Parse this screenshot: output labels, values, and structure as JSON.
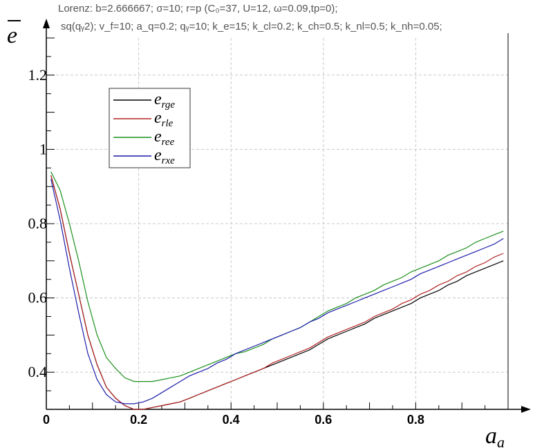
{
  "header": {
    "line1": "Lorenz: b=2.666667; σ=10; r=p (C₀=37, U=12, ω=0.09,tp=0);",
    "line2": "sq(qᵧ2); v_f=10; a_q=0.2; qᵧ=10; k_e=15; k_cl=0.2; k_ch=0.5; k_nl=0.5; k_nh=0.05;"
  },
  "chart_data": {
    "type": "line",
    "title": "",
    "xlabel": "a_a",
    "ylabel": "e",
    "xlim": [
      0,
      1.0
    ],
    "ylim": [
      0.3,
      1.3
    ],
    "xticks": [
      "0",
      "0.2",
      "0.4",
      "0.6",
      "0.8"
    ],
    "yticks": [
      "0.4",
      "0.6",
      "0.8",
      "1",
      "1.2"
    ],
    "grid": true,
    "legend_position": "top-left",
    "series": [
      {
        "name": "e_rge",
        "color": "#000000",
        "x": [
          0.01,
          0.03,
          0.05,
          0.07,
          0.09,
          0.11,
          0.13,
          0.15,
          0.17,
          0.19,
          0.21,
          0.23,
          0.25,
          0.27,
          0.29,
          0.31,
          0.33,
          0.35,
          0.37,
          0.39,
          0.41,
          0.43,
          0.45,
          0.47,
          0.49,
          0.51,
          0.53,
          0.55,
          0.57,
          0.59,
          0.61,
          0.63,
          0.65,
          0.67,
          0.69,
          0.71,
          0.73,
          0.75,
          0.77,
          0.79,
          0.81,
          0.83,
          0.85,
          0.87,
          0.89,
          0.91,
          0.93,
          0.95,
          0.97,
          0.99
        ],
        "y": [
          0.93,
          0.84,
          0.72,
          0.61,
          0.5,
          0.42,
          0.36,
          0.33,
          0.31,
          0.3,
          0.3,
          0.305,
          0.31,
          0.315,
          0.32,
          0.33,
          0.34,
          0.35,
          0.36,
          0.37,
          0.38,
          0.39,
          0.4,
          0.41,
          0.42,
          0.43,
          0.44,
          0.45,
          0.46,
          0.475,
          0.49,
          0.5,
          0.51,
          0.52,
          0.53,
          0.545,
          0.555,
          0.565,
          0.575,
          0.585,
          0.6,
          0.61,
          0.62,
          0.635,
          0.645,
          0.66,
          0.67,
          0.68,
          0.69,
          0.7
        ]
      },
      {
        "name": "e_rle",
        "color": "#b22222",
        "x": [
          0.01,
          0.03,
          0.05,
          0.07,
          0.09,
          0.11,
          0.13,
          0.15,
          0.17,
          0.19,
          0.21,
          0.23,
          0.25,
          0.27,
          0.29,
          0.31,
          0.33,
          0.35,
          0.37,
          0.39,
          0.41,
          0.43,
          0.45,
          0.47,
          0.49,
          0.51,
          0.53,
          0.55,
          0.57,
          0.59,
          0.61,
          0.63,
          0.65,
          0.67,
          0.69,
          0.71,
          0.73,
          0.75,
          0.77,
          0.79,
          0.81,
          0.83,
          0.85,
          0.87,
          0.89,
          0.91,
          0.93,
          0.95,
          0.97,
          0.99
        ],
        "y": [
          0.93,
          0.84,
          0.72,
          0.61,
          0.5,
          0.42,
          0.36,
          0.33,
          0.31,
          0.3,
          0.3,
          0.305,
          0.31,
          0.315,
          0.32,
          0.33,
          0.34,
          0.35,
          0.36,
          0.37,
          0.38,
          0.39,
          0.4,
          0.41,
          0.425,
          0.435,
          0.445,
          0.455,
          0.465,
          0.48,
          0.495,
          0.505,
          0.515,
          0.525,
          0.535,
          0.55,
          0.56,
          0.57,
          0.585,
          0.595,
          0.61,
          0.62,
          0.635,
          0.645,
          0.66,
          0.67,
          0.685,
          0.695,
          0.71,
          0.72
        ]
      },
      {
        "name": "e_ree",
        "color": "#1a8f1a",
        "x": [
          0.01,
          0.03,
          0.05,
          0.07,
          0.09,
          0.11,
          0.13,
          0.15,
          0.17,
          0.19,
          0.21,
          0.23,
          0.25,
          0.27,
          0.29,
          0.31,
          0.33,
          0.35,
          0.37,
          0.39,
          0.41,
          0.43,
          0.45,
          0.47,
          0.49,
          0.51,
          0.53,
          0.55,
          0.57,
          0.59,
          0.61,
          0.63,
          0.65,
          0.67,
          0.69,
          0.71,
          0.73,
          0.75,
          0.77,
          0.79,
          0.81,
          0.83,
          0.85,
          0.87,
          0.89,
          0.91,
          0.93,
          0.95,
          0.97,
          0.99
        ],
        "y": [
          0.94,
          0.89,
          0.8,
          0.7,
          0.59,
          0.5,
          0.44,
          0.41,
          0.385,
          0.375,
          0.375,
          0.375,
          0.38,
          0.385,
          0.39,
          0.4,
          0.41,
          0.42,
          0.43,
          0.44,
          0.45,
          0.455,
          0.465,
          0.475,
          0.49,
          0.5,
          0.51,
          0.52,
          0.535,
          0.55,
          0.565,
          0.575,
          0.585,
          0.6,
          0.61,
          0.62,
          0.635,
          0.645,
          0.655,
          0.67,
          0.68,
          0.69,
          0.7,
          0.715,
          0.725,
          0.735,
          0.75,
          0.76,
          0.77,
          0.78
        ]
      },
      {
        "name": "e_rxe",
        "color": "#1c1caa",
        "x": [
          0.01,
          0.03,
          0.05,
          0.07,
          0.09,
          0.11,
          0.13,
          0.15,
          0.17,
          0.19,
          0.21,
          0.23,
          0.25,
          0.27,
          0.29,
          0.31,
          0.33,
          0.35,
          0.37,
          0.39,
          0.41,
          0.43,
          0.45,
          0.47,
          0.49,
          0.51,
          0.53,
          0.55,
          0.57,
          0.59,
          0.61,
          0.63,
          0.65,
          0.67,
          0.69,
          0.71,
          0.73,
          0.75,
          0.77,
          0.79,
          0.81,
          0.83,
          0.85,
          0.87,
          0.89,
          0.91,
          0.93,
          0.95,
          0.97,
          0.99
        ],
        "y": [
          0.92,
          0.81,
          0.68,
          0.56,
          0.45,
          0.38,
          0.34,
          0.32,
          0.315,
          0.315,
          0.32,
          0.33,
          0.345,
          0.36,
          0.375,
          0.39,
          0.4,
          0.41,
          0.425,
          0.435,
          0.45,
          0.46,
          0.47,
          0.48,
          0.49,
          0.5,
          0.51,
          0.52,
          0.535,
          0.545,
          0.56,
          0.57,
          0.58,
          0.59,
          0.6,
          0.61,
          0.62,
          0.63,
          0.64,
          0.65,
          0.665,
          0.675,
          0.685,
          0.695,
          0.705,
          0.715,
          0.725,
          0.735,
          0.745,
          0.76
        ]
      }
    ]
  }
}
